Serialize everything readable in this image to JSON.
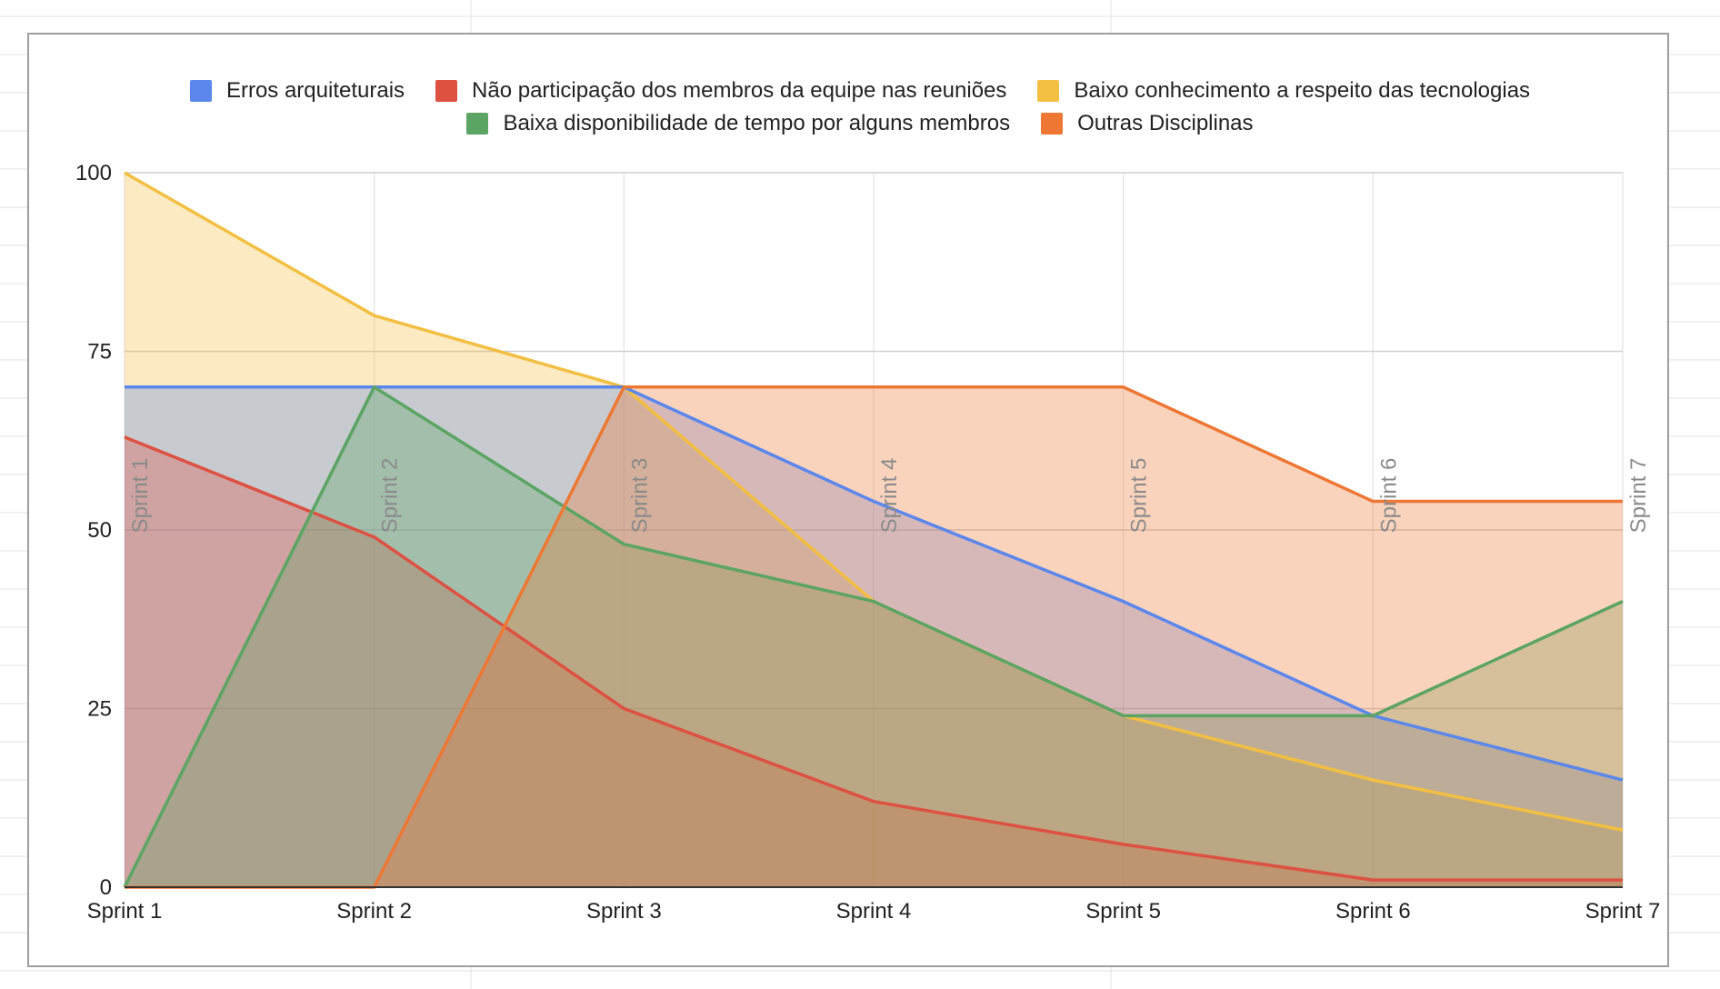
{
  "chart_data": {
    "type": "area",
    "categories": [
      "Sprint 1",
      "Sprint 2",
      "Sprint 3",
      "Sprint 4",
      "Sprint 5",
      "Sprint 6",
      "Sprint 7"
    ],
    "series": [
      {
        "name": "Erros arquiteturais",
        "color": "#5b87ec",
        "values": [
          70,
          70,
          70,
          54,
          40,
          24,
          15
        ]
      },
      {
        "name": "Não participação dos membros da equipe nas reuniões",
        "color": "#dd5143",
        "values": [
          63,
          49,
          25,
          12,
          6,
          1,
          1
        ]
      },
      {
        "name": "Baixo conhecimento a respeito das tecnologias",
        "color": "#f2bf42",
        "values": [
          100,
          80,
          70,
          40,
          24,
          15,
          8
        ]
      },
      {
        "name": "Baixa disponibilidade de tempo por alguns membros",
        "color": "#5ba463",
        "values": [
          0,
          70,
          48,
          40,
          24,
          24,
          40
        ]
      },
      {
        "name": "Outras Disciplinas",
        "color": "#ee7733",
        "values": [
          0,
          0,
          70,
          70,
          70,
          54,
          54
        ]
      }
    ],
    "yticks": [
      0,
      25,
      50,
      75,
      100
    ],
    "ylim": [
      0,
      100
    ],
    "grid": true,
    "legend_position": "top",
    "annotations": [
      "Sprint 1",
      "Sprint 2",
      "Sprint 3",
      "Sprint 4",
      "Sprint 5",
      "Sprint 6",
      "Sprint 7"
    ]
  }
}
